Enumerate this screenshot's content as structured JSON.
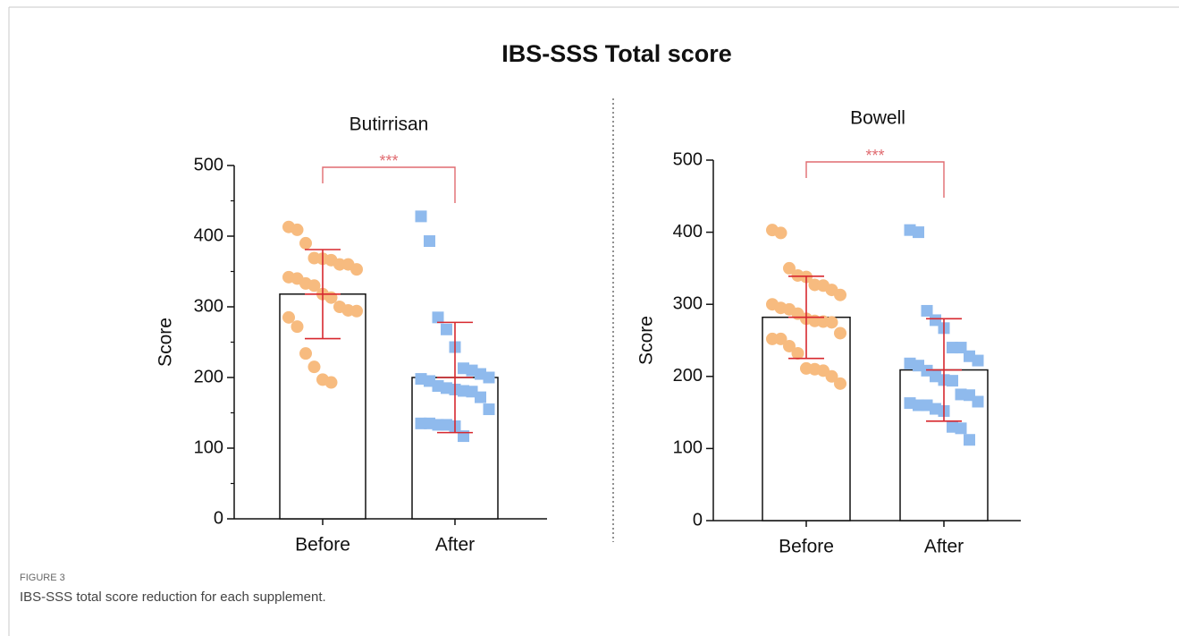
{
  "title": "IBS-SSS Total score",
  "figure_label": "FIGURE 3",
  "caption": "IBS-SSS total score reduction for each supplement.",
  "chart_data": [
    {
      "type": "bar",
      "title": "Butirrisan",
      "ylabel": "Score",
      "categories": [
        "Before",
        "After"
      ],
      "values": [
        318,
        200
      ],
      "errors": [
        63,
        78
      ],
      "points": [
        [
          413,
          409,
          390,
          369,
          368,
          366,
          360,
          360,
          353,
          342,
          340,
          333,
          330,
          318,
          313,
          300,
          295,
          294,
          285,
          272,
          234,
          215,
          197,
          193
        ],
        [
          428,
          393,
          285,
          268,
          243,
          213,
          210,
          205,
          200,
          198,
          195,
          188,
          185,
          183,
          181,
          180,
          172,
          155,
          135,
          135,
          133,
          133,
          131,
          117
        ]
      ],
      "point_colors": [
        "#f7bb7f",
        "#8fbaed"
      ],
      "markers": [
        "circle",
        "square"
      ],
      "error_color": "#d7282f",
      "significance": "***",
      "significance_color": "#e06b70",
      "ylim": [
        0,
        500
      ],
      "yticks": [
        0,
        100,
        200,
        300,
        400,
        500
      ],
      "minor_yticks": [
        50,
        150,
        250,
        350,
        450
      ]
    },
    {
      "type": "bar",
      "title": "Bowell",
      "ylabel": "Score",
      "categories": [
        "Before",
        "After"
      ],
      "values": [
        282,
        209
      ],
      "errors": [
        57,
        71
      ],
      "points": [
        [
          403,
          399,
          350,
          340,
          338,
          327,
          326,
          320,
          313,
          300,
          295,
          293,
          287,
          280,
          277,
          276,
          275,
          260,
          252,
          252,
          242,
          232,
          211,
          210,
          208,
          200,
          190
        ],
        [
          403,
          400,
          291,
          278,
          267,
          240,
          240,
          228,
          222,
          218,
          215,
          208,
          200,
          195,
          194,
          175,
          174,
          165,
          163,
          160,
          160,
          155,
          152,
          130,
          128,
          112
        ]
      ],
      "point_colors": [
        "#f7bb7f",
        "#8fbaed"
      ],
      "markers": [
        "circle",
        "square"
      ],
      "error_color": "#d7282f",
      "significance": "***",
      "significance_color": "#e06b70",
      "ylim": [
        0,
        500
      ],
      "yticks": [
        0,
        100,
        200,
        300,
        400,
        500
      ]
    }
  ]
}
